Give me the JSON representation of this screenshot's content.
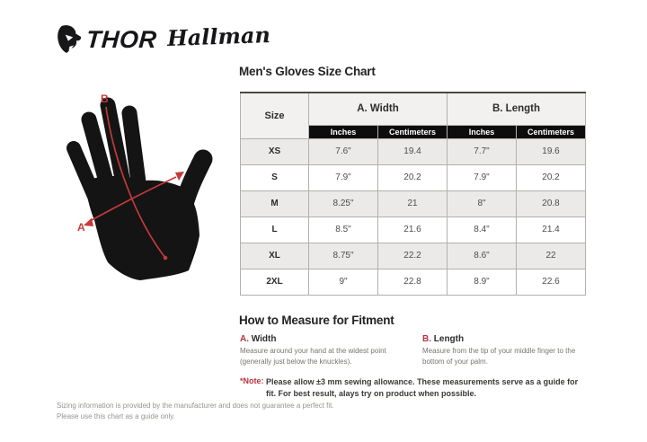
{
  "colors": {
    "accent_red": "#b8333e",
    "diagram_line_red": "#c23a3a",
    "glove_black": "#141414",
    "subheader_bg": "#0d0d0d",
    "header_bg": "#f2f1ef",
    "row_alt_bg": "#eceae8",
    "table_border": "#b3b0ad"
  },
  "logos": {
    "thor": "THOR",
    "hallman": "Hallman"
  },
  "diagram": {
    "label_a": "A",
    "label_b": "B"
  },
  "size_chart": {
    "title": "Men's Gloves Size Chart",
    "columns": {
      "size": "Size",
      "width_group": "A. Width",
      "length_group": "B. Length",
      "sub": [
        "Inches",
        "Centimeters",
        "Inches",
        "Centimeters"
      ]
    },
    "rows": [
      {
        "size": "XS",
        "width_in": "7.6\"",
        "width_cm": "19.4",
        "length_in": "7.7\"",
        "length_cm": "19.6"
      },
      {
        "size": "S",
        "width_in": "7.9\"",
        "width_cm": "20.2",
        "length_in": "7.9\"",
        "length_cm": "20.2"
      },
      {
        "size": "M",
        "width_in": "8.25\"",
        "width_cm": "21",
        "length_in": "8\"",
        "length_cm": "20.8"
      },
      {
        "size": "L",
        "width_in": "8.5\"",
        "width_cm": "21.6",
        "length_in": "8.4\"",
        "length_cm": "21.4"
      },
      {
        "size": "XL",
        "width_in": "8.75\"",
        "width_cm": "22.2",
        "length_in": "8.6\"",
        "length_cm": "22"
      },
      {
        "size": "2XL",
        "width_in": "9\"",
        "width_cm": "22.8",
        "length_in": "8.9\"",
        "length_cm": "22.6"
      }
    ]
  },
  "measure": {
    "title": "How to Measure for Fitment",
    "items": [
      {
        "key": "A.",
        "label": "Width",
        "text": "Measure around your hand at the widest point (generally just below the knuckles)."
      },
      {
        "key": "B.",
        "label": "Length",
        "text": "Measure from the tip of your middle finger to the bottom of your palm."
      }
    ],
    "note_label": "*Note:",
    "note_text": "Please allow ±3 mm sewing allowance. These measurements serve as a guide for fit. For best result, alays try on product when possible."
  },
  "footer": {
    "disclaimer_line1": "Sizing information is provided by the manufacturer and does not guarantee a perfect fit.",
    "disclaimer_line2": "Please use this chart as a guide only."
  }
}
